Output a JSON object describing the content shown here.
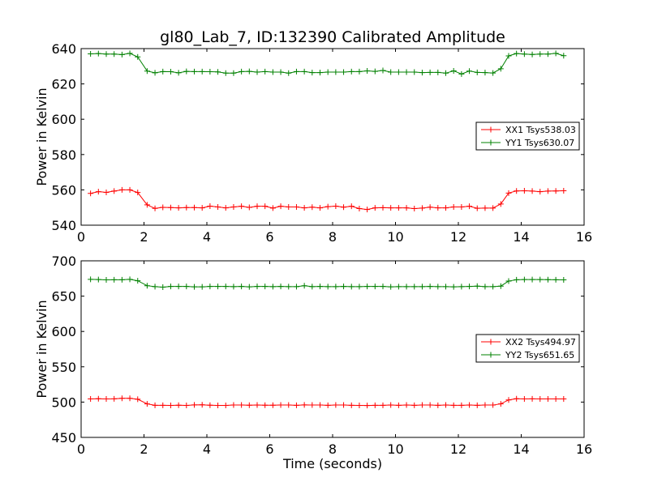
{
  "chart_data": [
    {
      "type": "line",
      "title": "gl80_Lab_7, ID:132390 Calibrated Amplitude",
      "xlabel": "",
      "ylabel": "Power in Kelvin",
      "xlim": [
        0,
        16
      ],
      "ylim": [
        540,
        640
      ],
      "xticks": [
        0,
        2,
        4,
        6,
        8,
        10,
        12,
        14,
        16
      ],
      "yticks": [
        540,
        560,
        580,
        600,
        620,
        640
      ],
      "grid": false,
      "legend_position": "center-right",
      "x": [
        0.3,
        0.55,
        0.8,
        1.05,
        1.3,
        1.55,
        1.8,
        2.1,
        2.35,
        2.6,
        2.85,
        3.1,
        3.35,
        3.6,
        3.85,
        4.1,
        4.35,
        4.6,
        4.85,
        5.1,
        5.35,
        5.6,
        5.85,
        6.1,
        6.35,
        6.6,
        6.85,
        7.1,
        7.35,
        7.6,
        7.85,
        8.1,
        8.35,
        8.6,
        8.85,
        9.1,
        9.35,
        9.6,
        9.85,
        10.1,
        10.35,
        10.6,
        10.85,
        11.1,
        11.35,
        11.6,
        11.85,
        12.1,
        12.35,
        12.6,
        12.85,
        13.1,
        13.35,
        13.6,
        13.85,
        14.1,
        14.35,
        14.6,
        14.85,
        15.1,
        15.35
      ],
      "series": [
        {
          "name": "XX1 Tsys538.03",
          "color": "#ff0000",
          "values": [
            558.0,
            559.0,
            558.6,
            559.3,
            560.0,
            560.0,
            558.5,
            551.5,
            549.5,
            550.1,
            550.0,
            549.8,
            550.0,
            550.0,
            549.8,
            550.8,
            550.3,
            549.8,
            550.3,
            550.7,
            550.1,
            550.7,
            550.7,
            549.7,
            550.7,
            550.3,
            550.3,
            549.8,
            550.2,
            549.8,
            550.5,
            550.8,
            550.2,
            550.7,
            549.4,
            548.9,
            549.8,
            549.9,
            549.8,
            549.8,
            549.8,
            549.4,
            549.7,
            550.2,
            549.8,
            549.8,
            550.3,
            550.3,
            550.7,
            549.6,
            549.7,
            549.7,
            552.0,
            558.2,
            559.4,
            559.5,
            559.3,
            559.0,
            559.3,
            559.4,
            559.5
          ]
        },
        {
          "name": "YY1 Tsys630.07",
          "color": "#008000",
          "values": [
            637.0,
            637.2,
            636.9,
            636.9,
            636.6,
            637.3,
            635.3,
            627.3,
            626.3,
            627.0,
            626.9,
            626.3,
            627.1,
            627.0,
            627.0,
            626.9,
            626.8,
            626.1,
            626.1,
            627.0,
            627.1,
            626.7,
            627.0,
            626.7,
            626.7,
            626.1,
            627.0,
            627.0,
            626.4,
            626.4,
            626.7,
            626.7,
            626.7,
            627.0,
            627.0,
            627.4,
            627.1,
            627.6,
            626.7,
            626.7,
            626.7,
            626.7,
            626.4,
            626.5,
            626.5,
            626.1,
            627.4,
            625.6,
            627.3,
            626.5,
            626.4,
            626.2,
            628.6,
            635.9,
            637.2,
            636.9,
            636.7,
            636.9,
            636.9,
            637.3,
            636.0
          ]
        }
      ]
    },
    {
      "type": "line",
      "title": "",
      "xlabel": "Time (seconds)",
      "ylabel": "Power in Kelvin",
      "xlim": [
        0,
        16
      ],
      "ylim": [
        450,
        700
      ],
      "xticks": [
        0,
        2,
        4,
        6,
        8,
        10,
        12,
        14,
        16
      ],
      "yticks": [
        450,
        500,
        550,
        600,
        650,
        700
      ],
      "grid": false,
      "legend_position": "center-right",
      "x": [
        0.3,
        0.55,
        0.8,
        1.05,
        1.3,
        1.55,
        1.8,
        2.1,
        2.35,
        2.6,
        2.85,
        3.1,
        3.35,
        3.6,
        3.85,
        4.1,
        4.35,
        4.6,
        4.85,
        5.1,
        5.35,
        5.6,
        5.85,
        6.1,
        6.35,
        6.6,
        6.85,
        7.1,
        7.35,
        7.6,
        7.85,
        8.1,
        8.35,
        8.6,
        8.85,
        9.1,
        9.35,
        9.6,
        9.85,
        10.1,
        10.35,
        10.6,
        10.85,
        11.1,
        11.35,
        11.6,
        11.85,
        12.1,
        12.35,
        12.6,
        12.85,
        13.1,
        13.35,
        13.6,
        13.85,
        14.1,
        14.35,
        14.6,
        14.85,
        15.1,
        15.35
      ],
      "series": [
        {
          "name": "XX2 Tsys494.97",
          "color": "#ff0000",
          "values": [
            504.5,
            504.7,
            504.4,
            504.6,
            505.3,
            505.3,
            504.0,
            497.5,
            495.5,
            495.5,
            495.3,
            495.6,
            495.3,
            496.0,
            496.1,
            495.6,
            495.3,
            495.3,
            495.8,
            495.8,
            495.6,
            495.8,
            495.6,
            495.6,
            495.8,
            495.8,
            495.4,
            496.0,
            495.8,
            495.8,
            495.5,
            495.8,
            495.8,
            495.5,
            495.3,
            495.1,
            495.5,
            495.5,
            495.8,
            495.5,
            495.8,
            495.5,
            495.8,
            495.8,
            495.5,
            495.8,
            495.5,
            495.5,
            495.8,
            495.5,
            495.8,
            495.8,
            497.5,
            503.1,
            504.8,
            504.5,
            504.6,
            504.5,
            504.5,
            504.5,
            504.4
          ]
        },
        {
          "name": "YY2 Tsys651.65",
          "color": "#008000",
          "values": [
            673.7,
            673.5,
            673.1,
            673.2,
            673.2,
            673.7,
            671.8,
            664.8,
            663.5,
            662.7,
            663.7,
            663.7,
            663.7,
            663.2,
            663.2,
            663.7,
            663.7,
            663.7,
            663.4,
            663.7,
            663.2,
            663.7,
            663.7,
            663.5,
            663.7,
            663.5,
            663.5,
            664.7,
            663.5,
            663.7,
            663.5,
            663.5,
            663.7,
            663.5,
            663.5,
            663.7,
            663.7,
            663.7,
            663.2,
            663.5,
            663.5,
            663.5,
            663.5,
            663.7,
            663.5,
            663.4,
            663.2,
            663.5,
            663.7,
            664.2,
            663.5,
            663.5,
            664.2,
            671.4,
            673.2,
            673.5,
            673.5,
            673.5,
            673.4,
            673.2,
            673.0
          ]
        }
      ]
    }
  ]
}
